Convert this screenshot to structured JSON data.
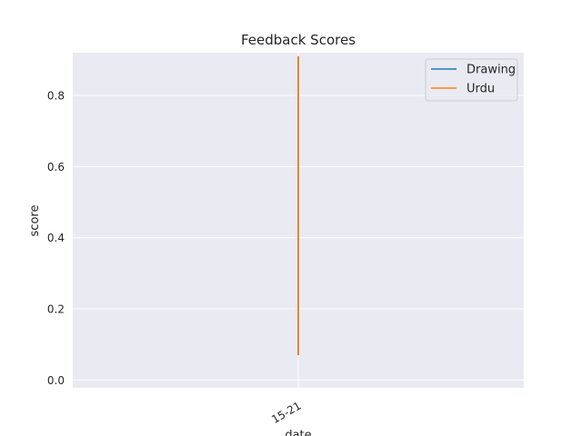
{
  "chart_data": {
    "type": "line",
    "title": "Feedback Scores",
    "xlabel": "date",
    "ylabel": "score",
    "categories": [
      "15-21"
    ],
    "ylim": [
      -0.022,
      0.92
    ],
    "yticks": [
      0.0,
      0.2,
      0.4,
      0.6,
      0.8
    ],
    "ytick_labels": [
      "0.0",
      "0.2",
      "0.4",
      "0.6",
      "0.8"
    ],
    "grid": true,
    "legend": "upper right",
    "series": [
      {
        "name": "Drawing",
        "color": "#1f77b4",
        "x": [
          "15-21",
          "15-21"
        ],
        "y": [
          0.07,
          0.91
        ]
      },
      {
        "name": "Urdu",
        "color": "#ff7f0e",
        "x": [
          "15-21",
          "15-21"
        ],
        "y": [
          0.07,
          0.91
        ]
      }
    ]
  }
}
